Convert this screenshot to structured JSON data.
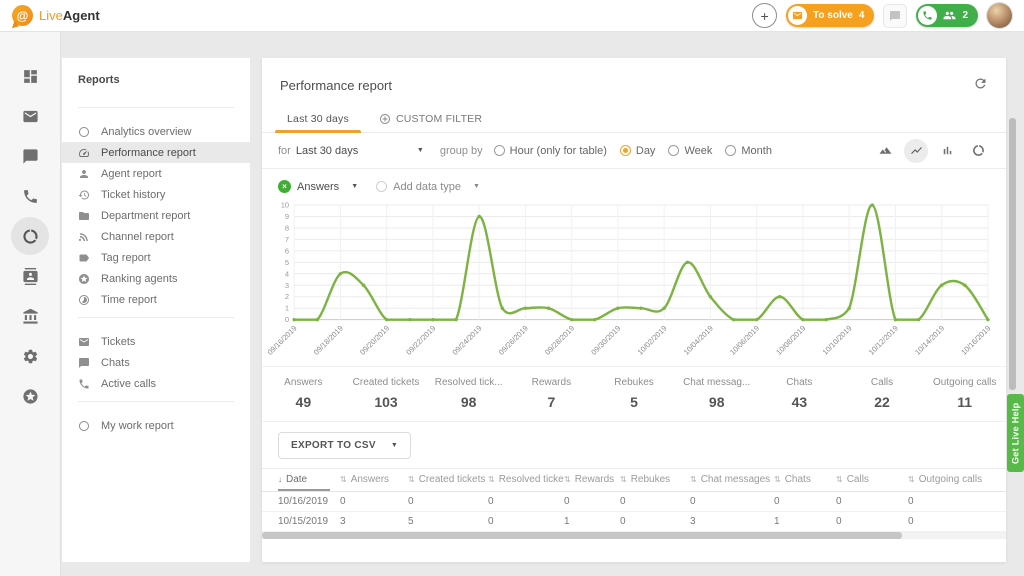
{
  "brand": {
    "live": "Live",
    "agent": "Agent",
    "at": "@"
  },
  "topbar": {
    "to_solve": {
      "label": "To solve",
      "count": "4"
    },
    "calls_badge": {
      "count": "2"
    }
  },
  "nav_rail": {
    "items": [
      {
        "name": "dashboard",
        "active": false
      },
      {
        "name": "tickets",
        "active": false
      },
      {
        "name": "chats",
        "active": false
      },
      {
        "name": "calls",
        "active": false
      },
      {
        "name": "analytics",
        "active": true
      },
      {
        "name": "contacts",
        "active": false
      },
      {
        "name": "academy",
        "active": false
      },
      {
        "name": "settings",
        "active": false
      },
      {
        "name": "upgrade",
        "active": false
      }
    ]
  },
  "sidebar": {
    "title": "Reports",
    "items": [
      {
        "label": "Analytics overview",
        "active": false
      },
      {
        "label": "Performance report",
        "active": true
      },
      {
        "label": "Agent report",
        "active": false
      },
      {
        "label": "Ticket history",
        "active": false
      },
      {
        "label": "Department report",
        "active": false
      },
      {
        "label": "Channel report",
        "active": false
      },
      {
        "label": "Tag report",
        "active": false
      },
      {
        "label": "Ranking agents",
        "active": false
      },
      {
        "label": "Time report",
        "active": false
      }
    ],
    "secondary": [
      {
        "label": "Tickets"
      },
      {
        "label": "Chats"
      },
      {
        "label": "Active calls"
      }
    ],
    "tertiary": [
      {
        "label": "My work report"
      }
    ]
  },
  "report": {
    "title": "Performance report",
    "tabs": [
      {
        "label": "Last 30 days",
        "active": true
      },
      {
        "label": "CUSTOM FILTER",
        "active": false
      }
    ],
    "filter": {
      "for_label": "for",
      "range_value": "Last 30 days",
      "group_by_label": "group by",
      "options": [
        {
          "label": "Hour (only for table)",
          "selected": false
        },
        {
          "label": "Day",
          "selected": true
        },
        {
          "label": "Week",
          "selected": false
        },
        {
          "label": "Month",
          "selected": false
        }
      ]
    },
    "legend": {
      "series": "Answers",
      "add": "Add data type"
    }
  },
  "chart_data": {
    "type": "line",
    "title": "",
    "x": [
      "09/16/2019",
      "09/17/2019",
      "09/18/2019",
      "09/19/2019",
      "09/20/2019",
      "09/21/2019",
      "09/22/2019",
      "09/23/2019",
      "09/24/2019",
      "09/25/2019",
      "09/26/2019",
      "09/27/2019",
      "09/28/2019",
      "09/29/2019",
      "09/30/2019",
      "10/01/2019",
      "10/02/2019",
      "10/03/2019",
      "10/04/2019",
      "10/05/2019",
      "10/06/2019",
      "10/07/2019",
      "10/08/2019",
      "10/09/2019",
      "10/10/2019",
      "10/11/2019",
      "10/12/2019",
      "10/13/2019",
      "10/14/2019",
      "10/15/2019",
      "10/16/2019"
    ],
    "x_tick_every": 2,
    "series": [
      {
        "name": "Answers",
        "color": "#7cb342",
        "values": [
          0,
          0,
          4,
          3,
          0,
          0,
          0,
          0,
          9,
          1,
          1,
          1,
          0,
          0,
          1,
          1,
          1,
          5,
          2,
          0,
          0,
          2,
          0,
          0,
          1,
          10,
          0,
          0,
          3,
          3,
          0
        ]
      }
    ],
    "ylim": [
      0,
      10
    ],
    "y_ticks": [
      0,
      1,
      2,
      3,
      4,
      5,
      6,
      7,
      8,
      9,
      10
    ],
    "grid": true,
    "legend_position": "top-left"
  },
  "stats": [
    {
      "label": "Answers",
      "value": "49"
    },
    {
      "label": "Created tickets",
      "value": "103"
    },
    {
      "label": "Resolved tick...",
      "value": "98"
    },
    {
      "label": "Rewards",
      "value": "7"
    },
    {
      "label": "Rebukes",
      "value": "5"
    },
    {
      "label": "Chat messag...",
      "value": "98"
    },
    {
      "label": "Chats",
      "value": "43"
    },
    {
      "label": "Calls",
      "value": "22"
    },
    {
      "label": "Outgoing calls",
      "value": "11"
    }
  ],
  "export": {
    "label": "EXPORT TO CSV"
  },
  "table": {
    "sorted_column": "Date",
    "columns": [
      "Date",
      "Answers",
      "Created tickets",
      "Resolved tickets",
      "Rewards",
      "Rebukes",
      "Chat messages",
      "Chats",
      "Calls",
      "Outgoing calls"
    ],
    "rows": [
      [
        "10/16/2019",
        "0",
        "0",
        "0",
        "0",
        "0",
        "0",
        "0",
        "0",
        "0"
      ],
      [
        "10/15/2019",
        "3",
        "5",
        "0",
        "1",
        "0",
        "3",
        "1",
        "0",
        "0"
      ]
    ]
  },
  "help_tab": {
    "label": "Get Live Help"
  }
}
